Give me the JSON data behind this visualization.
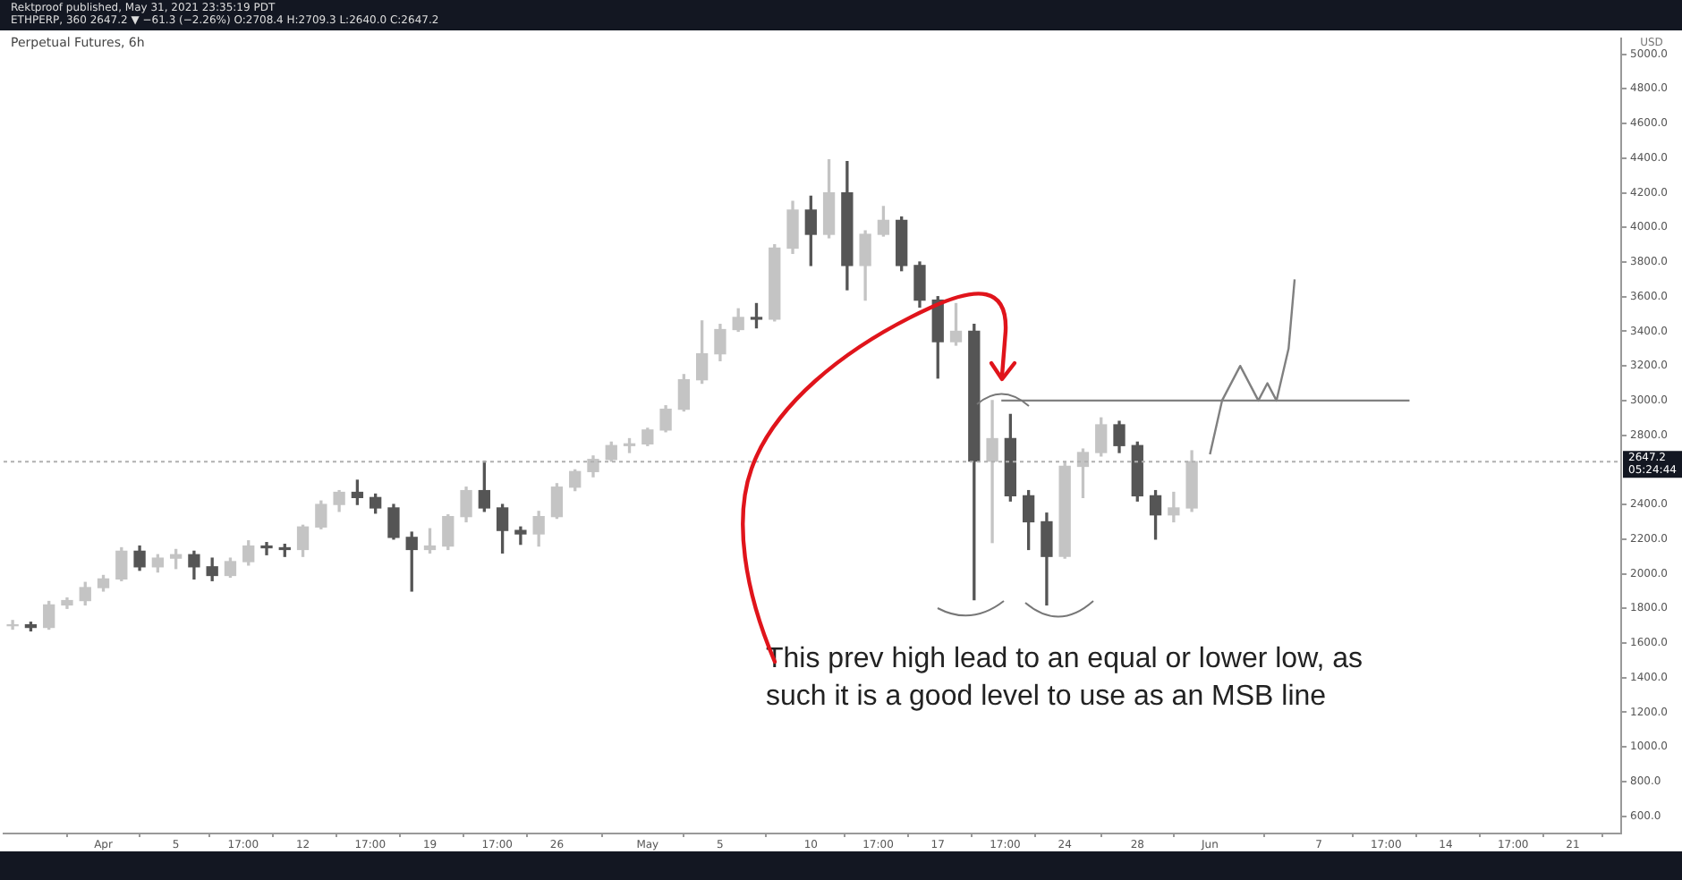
{
  "chart_data": {
    "type": "candlestick",
    "title": "Perpetual Futures, 6h",
    "subtitle": "Rektproof published, May 31, 2021 23:35:19 PDT",
    "ylabel": "USD",
    "annotations": [
      "ETHPERP, 360 2647.2 ▼ −61.3 (−2.26%) O:2708.4 H:2709.3 L:2640.0 C:2647.2",
      "This prev high lead to an equal or lower low, as such it is a good level to use as an MSB line",
      "05:24:44"
    ],
    "colors": [
      "#c4c4c4",
      "#555555",
      "#c4c4c4",
      "#c4c4c4",
      "#c4c4c4",
      "#c4c4c4",
      "#c4c4c4",
      "#555555",
      "#c4c4c4",
      "#c4c4c4",
      "#555555",
      "#555555",
      "#c4c4c4",
      "#c4c4c4",
      "#555555",
      "#555555",
      "#c4c4c4",
      "#c4c4c4",
      "#c4c4c4",
      "#555555",
      "#555555",
      "#555555",
      "#555555",
      "#c4c4c4",
      "#c4c4c4",
      "#c4c4c4",
      "#555555",
      "#555555",
      "#555555",
      "#c4c4c4",
      "#c4c4c4",
      "#c4c4c4",
      "#c4c4c4",
      "#c4c4c4",
      "#c4c4c4",
      "#c4c4c4",
      "#c4c4c4",
      "#c4c4c4",
      "#c4c4c4",
      "#c4c4c4",
      "#c4c4c4",
      "#555555",
      "#c4c4c4",
      "#c4c4c4",
      "#555555",
      "#c4c4c4",
      "#555555",
      "#c4c4c4",
      "#c4c4c4",
      "#555555",
      "#555555",
      "#555555",
      "#c4c4c4",
      "#555555",
      "#c4c4c4",
      "#555555",
      "#555555",
      "#555555",
      "#c4c4c4",
      "#c4c4c4",
      "#c4c4c4",
      "#555555",
      "#555555",
      "#555555",
      "#c4c4c4",
      "#c4c4c4"
    ],
    "x": [
      "2021-03-27",
      "2021-03-28",
      "2021-03-29",
      "2021-03-30",
      "2021-03-31",
      "2021-04-01",
      "2021-04-02",
      "2021-04-03",
      "2021-04-04",
      "2021-04-05",
      "2021-04-06",
      "2021-04-07",
      "2021-04-08",
      "2021-04-09",
      "2021-04-10",
      "2021-04-11",
      "2021-04-12",
      "2021-04-13",
      "2021-04-14",
      "2021-04-15",
      "2021-04-16",
      "2021-04-17",
      "2021-04-18",
      "2021-04-19",
      "2021-04-20",
      "2021-04-21",
      "2021-04-22",
      "2021-04-23",
      "2021-04-24",
      "2021-04-25",
      "2021-04-26",
      "2021-04-27",
      "2021-04-28",
      "2021-04-29",
      "2021-04-30",
      "2021-05-01",
      "2021-05-02",
      "2021-05-03",
      "2021-05-04",
      "2021-05-05",
      "2021-05-06",
      "2021-05-07",
      "2021-05-08",
      "2021-05-09",
      "2021-05-10",
      "2021-05-11",
      "2021-05-12",
      "2021-05-13",
      "2021-05-14",
      "2021-05-15",
      "2021-05-16",
      "2021-05-17",
      "2021-05-18",
      "2021-05-19",
      "2021-05-20",
      "2021-05-21",
      "2021-05-22",
      "2021-05-23",
      "2021-05-24",
      "2021-05-25",
      "2021-05-26",
      "2021-05-27",
      "2021-05-28",
      "2021-05-29",
      "2021-05-30",
      "2021-05-31"
    ],
    "ohlc": [
      [
        1700,
        1730,
        1680,
        1705
      ],
      [
        1705,
        1720,
        1670,
        1690
      ],
      [
        1690,
        1840,
        1680,
        1820
      ],
      [
        1820,
        1860,
        1800,
        1845
      ],
      [
        1845,
        1950,
        1820,
        1920
      ],
      [
        1920,
        1990,
        1900,
        1970
      ],
      [
        1970,
        2150,
        1960,
        2130
      ],
      [
        2130,
        2160,
        2020,
        2040
      ],
      [
        2040,
        2110,
        2010,
        2090
      ],
      [
        2090,
        2140,
        2030,
        2110
      ],
      [
        2110,
        2130,
        1970,
        2040
      ],
      [
        2040,
        2090,
        1960,
        1990
      ],
      [
        1990,
        2090,
        1980,
        2070
      ],
      [
        2070,
        2190,
        2050,
        2160
      ],
      [
        2160,
        2180,
        2110,
        2150
      ],
      [
        2150,
        2170,
        2100,
        2140
      ],
      [
        2140,
        2280,
        2100,
        2270
      ],
      [
        2270,
        2420,
        2260,
        2400
      ],
      [
        2400,
        2480,
        2360,
        2470
      ],
      [
        2470,
        2540,
        2400,
        2440
      ],
      [
        2440,
        2460,
        2350,
        2380
      ],
      [
        2380,
        2400,
        2200,
        2210
      ],
      [
        2210,
        2240,
        1900,
        2140
      ],
      [
        2140,
        2260,
        2120,
        2160
      ],
      [
        2160,
        2340,
        2140,
        2330
      ],
      [
        2330,
        2500,
        2300,
        2480
      ],
      [
        2480,
        2650,
        2360,
        2380
      ],
      [
        2380,
        2400,
        2120,
        2250
      ],
      [
        2250,
        2270,
        2170,
        2230
      ],
      [
        2230,
        2360,
        2160,
        2330
      ],
      [
        2330,
        2520,
        2320,
        2500
      ],
      [
        2500,
        2600,
        2480,
        2590
      ],
      [
        2590,
        2680,
        2560,
        2660
      ],
      [
        2660,
        2760,
        2650,
        2740
      ],
      [
        2740,
        2780,
        2700,
        2750
      ],
      [
        2750,
        2840,
        2740,
        2830
      ],
      [
        2830,
        2970,
        2820,
        2950
      ],
      [
        2950,
        3150,
        2940,
        3120
      ],
      [
        3120,
        3460,
        3100,
        3270
      ],
      [
        3270,
        3440,
        3230,
        3410
      ],
      [
        3410,
        3530,
        3400,
        3480
      ],
      [
        3480,
        3560,
        3420,
        3470
      ],
      [
        3470,
        3900,
        3460,
        3880
      ],
      [
        3880,
        4150,
        3850,
        4100
      ],
      [
        4100,
        4180,
        3780,
        3960
      ],
      [
        3960,
        4390,
        3940,
        4200
      ],
      [
        4200,
        4380,
        3640,
        3780
      ],
      [
        3780,
        3980,
        3580,
        3960
      ],
      [
        3960,
        4120,
        3950,
        4040
      ],
      [
        4040,
        4060,
        3750,
        3780
      ],
      [
        3780,
        3800,
        3540,
        3580
      ],
      [
        3580,
        3600,
        3130,
        3340
      ],
      [
        3340,
        3560,
        3320,
        3400
      ],
      [
        3400,
        3440,
        1850,
        2650
      ],
      [
        2650,
        3000,
        2180,
        2780
      ],
      [
        2780,
        2920,
        2420,
        2450
      ],
      [
        2450,
        2480,
        2140,
        2300
      ],
      [
        2300,
        2350,
        1820,
        2100
      ],
      [
        2100,
        2640,
        2090,
        2620
      ],
      [
        2620,
        2720,
        2440,
        2700
      ],
      [
        2700,
        2900,
        2680,
        2860
      ],
      [
        2860,
        2880,
        2700,
        2740
      ],
      [
        2740,
        2760,
        2420,
        2450
      ],
      [
        2450,
        2480,
        2200,
        2340
      ],
      [
        2340,
        2470,
        2300,
        2380
      ],
      [
        2380,
        2710,
        2360,
        2647.2
      ]
    ],
    "series": [
      {
        "type": "line",
        "color": "#808080",
        "x": [
          "2021-05-20T12:00",
          "2021-06-12"
        ],
        "values": [
          3000,
          3000
        ]
      },
      {
        "type": "line",
        "color": "#808080",
        "x": [
          "2021-06-01",
          "2021-06-01T16:00",
          "2021-06-02T16:00",
          "2021-06-03T16:00",
          "2021-06-04T04:00",
          "2021-06-04T16:00",
          "2021-06-05T08:00",
          "2021-06-05T16:00"
        ],
        "values": [
          2690,
          3000,
          3200,
          3000,
          3100,
          3000,
          3300,
          3700
        ]
      }
    ],
    "ref_lines": [
      {
        "axis": "y",
        "value": 2647.2,
        "label": "2647.2",
        "color": "#b0b0b0",
        "line_style": "dotted"
      }
    ],
    "xlim": [
      "2021-03-26T12:00",
      "2021-06-23T16:00"
    ],
    "xticks": [
      {
        "value": "2021-04-01",
        "label": "Apr"
      },
      {
        "value": "2021-04-05",
        "label": "5"
      },
      {
        "value": "2021-04-08T17:00",
        "label": "17:00"
      },
      {
        "value": "2021-04-12",
        "label": "12"
      },
      {
        "value": "2021-04-15T17:00",
        "label": "17:00"
      },
      {
        "value": "2021-04-19",
        "label": "19"
      },
      {
        "value": "2021-04-22T17:00",
        "label": "17:00"
      },
      {
        "value": "2021-04-26",
        "label": "26"
      },
      {
        "value": "2021-05-01",
        "label": "May"
      },
      {
        "value": "2021-05-05",
        "label": "5"
      },
      {
        "value": "2021-05-10",
        "label": "10"
      },
      {
        "value": "2021-05-13T17:00",
        "label": "17:00"
      },
      {
        "value": "2021-05-17",
        "label": "17"
      },
      {
        "value": "2021-05-20T17:00",
        "label": "17:00"
      },
      {
        "value": "2021-05-24",
        "label": "24"
      },
      {
        "value": "2021-05-28",
        "label": "28"
      },
      {
        "value": "2021-06-01",
        "label": "Jun"
      },
      {
        "value": "2021-06-07",
        "label": "7"
      },
      {
        "value": "2021-06-10T17:00",
        "label": "17:00"
      },
      {
        "value": "2021-06-14",
        "label": "14"
      },
      {
        "value": "2021-06-17T17:00",
        "label": "17:00"
      },
      {
        "value": "2021-06-21",
        "label": "21"
      }
    ],
    "ylim": [
      500,
      5090
    ],
    "yticks": [
      {
        "value": 600,
        "label": "600.0"
      },
      {
        "value": 800,
        "label": "800.0"
      },
      {
        "value": 1000,
        "label": "1000.0"
      },
      {
        "value": 1200,
        "label": "1200.0"
      },
      {
        "value": 1400,
        "label": "1400.0"
      },
      {
        "value": 1600,
        "label": "1600.0"
      },
      {
        "value": 1800,
        "label": "1800.0"
      },
      {
        "value": 2000,
        "label": "2000.0"
      },
      {
        "value": 2200,
        "label": "2200.0"
      },
      {
        "value": 2400,
        "label": "2400.0"
      },
      {
        "value": 2800,
        "label": "2800.0"
      },
      {
        "value": 3000,
        "label": "3000.0"
      },
      {
        "value": 3200,
        "label": "3200.0"
      },
      {
        "value": 3400,
        "label": "3400.0"
      },
      {
        "value": 3600,
        "label": "3600.0"
      },
      {
        "value": 3800,
        "label": "3800.0"
      },
      {
        "value": 4000,
        "label": "4000.0"
      },
      {
        "value": 4200,
        "label": "4200.0"
      },
      {
        "value": 4400,
        "label": "4400.0"
      },
      {
        "value": 4600,
        "label": "4600.0"
      },
      {
        "value": 4800,
        "label": "4800.0"
      },
      {
        "value": 5000,
        "label": "5000.0"
      }
    ],
    "marker": "none",
    "line_style": "solid"
  }
}
